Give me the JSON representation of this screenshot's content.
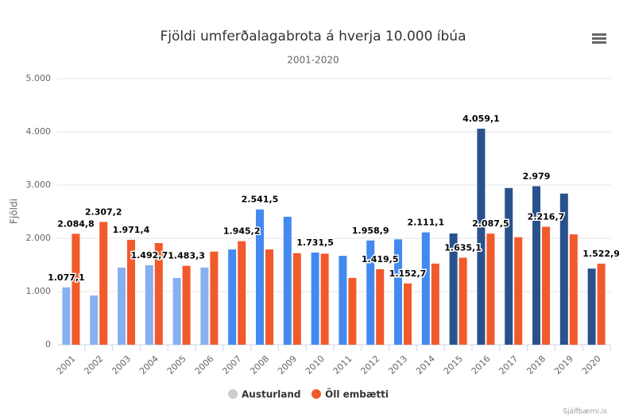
{
  "chart_data": {
    "type": "bar",
    "title": "Fjöldi umferðalagabrota á hverja 10.000 íbúa",
    "subtitle": "2001-2020",
    "y_label": "Fjöldi",
    "credit": "Sjálfbærni.is",
    "categories": [
      "2001",
      "2002",
      "2003",
      "2004",
      "2005",
      "2006",
      "2007",
      "2008",
      "2009",
      "2010",
      "2011",
      "2012",
      "2013",
      "2014",
      "2015",
      "2016",
      "2017",
      "2018",
      "2019",
      "2020"
    ],
    "series": [
      {
        "name": "Austurland",
        "color": "#cccccc",
        "point_colors": [
          "#86b0f0",
          "#86b0f0",
          "#86b0f0",
          "#86b0f0",
          "#86b0f0",
          "#86b0f0",
          "#4389f0",
          "#4389f0",
          "#4389f0",
          "#4389f0",
          "#4389f0",
          "#4389f0",
          "#4389f0",
          "#4389f0",
          "#29518c",
          "#29518c",
          "#29518c",
          "#29518c",
          "#29518c",
          "#29518c"
        ],
        "values": [
          1077.1,
          925,
          1450,
          1492.7,
          1255,
          1450,
          1790,
          2541.5,
          2405,
          1731.5,
          1670,
          1958.9,
          1980,
          2111.1,
          2090,
          4059.1,
          2945,
          2979,
          2840,
          1430
        ],
        "value_labels": [
          "1.077,1",
          null,
          null,
          "1.492,7",
          null,
          null,
          null,
          "2.541,5",
          null,
          "1.731,5",
          null,
          "1.958,9",
          null,
          "2.111,1",
          null,
          "4.059,1",
          null,
          "2.979",
          null,
          null
        ]
      },
      {
        "name": "Öll embætti",
        "color": "#f15a2b",
        "values": [
          2084.8,
          2307.2,
          1971.4,
          1910,
          1483.3,
          1750,
          1945.2,
          1790,
          1720,
          1710,
          1255,
          1419.5,
          1152.7,
          1525,
          1635.1,
          2087.5,
          2020,
          2216.7,
          2075,
          1522.9
        ],
        "value_labels": [
          "2.084,8",
          "2.307,2",
          "1.971,4",
          null,
          "1.483,3",
          null,
          "1.945,2",
          null,
          null,
          null,
          null,
          "1.419,5",
          "1.152,7",
          null,
          "1.635,1",
          "2.087,5",
          null,
          "2.216,7",
          null,
          "1.522,9"
        ]
      }
    ],
    "ylim": [
      0,
      5000
    ],
    "yticks": [
      0,
      {
        "value": 1000,
        "label": "1.000"
      },
      {
        "value": 2000,
        "label": "2.000"
      },
      {
        "value": 3000,
        "label": "3.000"
      },
      {
        "value": 4000,
        "label": "4.000"
      },
      {
        "value": 5000,
        "label": "5.000"
      }
    ],
    "grid": true
  }
}
